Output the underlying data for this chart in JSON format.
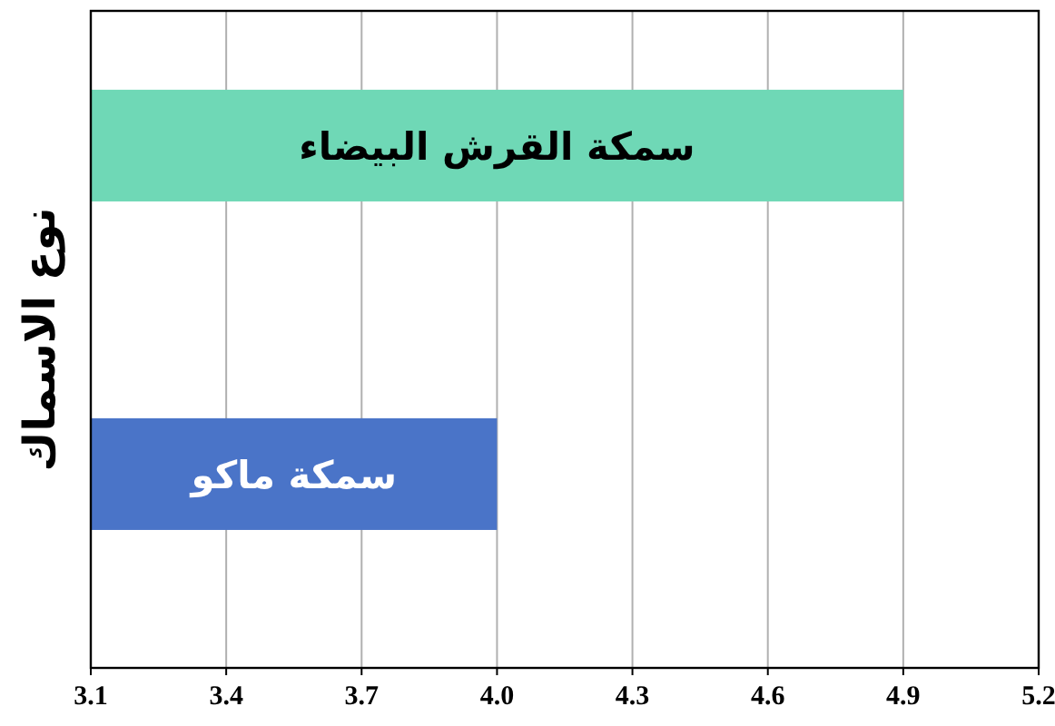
{
  "chart_data": {
    "type": "bar",
    "orientation": "horizontal",
    "ylabel": "نوع الاسماك",
    "categories": [
      "سمكة القرش البيضاء",
      "سمكة ماكو"
    ],
    "values": [
      4.9,
      4.0
    ],
    "colors": [
      "#6fd8b6",
      "#4a74c8"
    ],
    "xlim": [
      3.1,
      5.2
    ],
    "xticks": [
      3.1,
      3.4,
      3.7,
      {
        "value": 4,
        "label": "4.0"
      },
      4.3,
      4.6,
      4.9,
      5.2
    ],
    "grid": "x"
  }
}
